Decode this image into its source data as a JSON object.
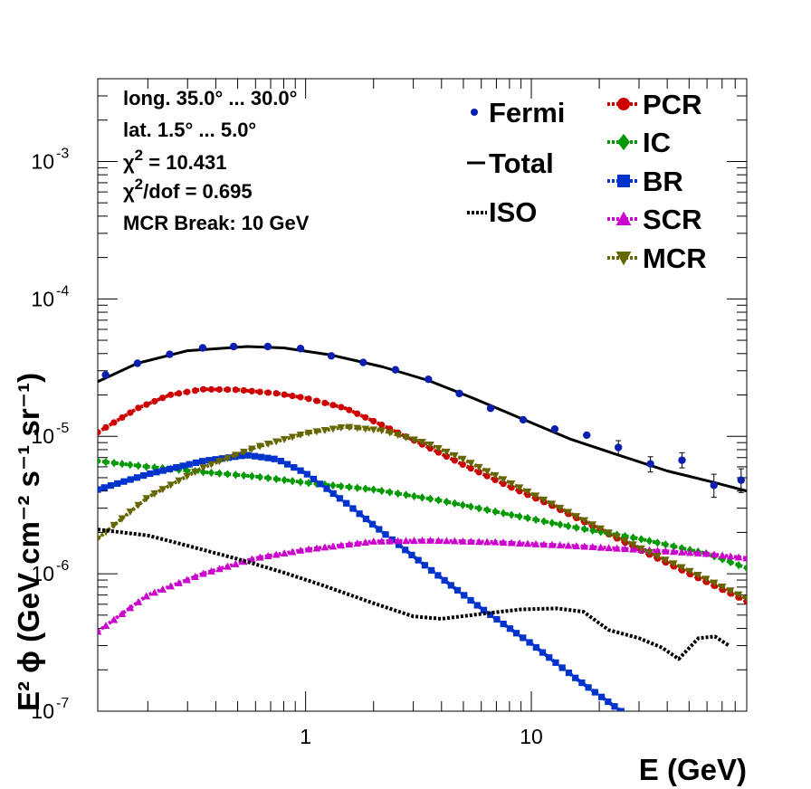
{
  "chart_data": {
    "type": "line",
    "x_scale": "log",
    "y_scale": "log",
    "xlim": [
      0.12,
      90
    ],
    "ylim": [
      1e-07,
      0.004
    ],
    "xlabel": "E (GeV)",
    "ylabel": "E² ϕ (GeV cm⁻² s⁻¹ sr⁻¹)",
    "grid": false,
    "x_ticks": [
      {
        "value": 1,
        "label": "1"
      },
      {
        "value": 10,
        "label": "10"
      }
    ],
    "y_ticks": [
      {
        "value": 1e-07,
        "label": "10",
        "exp": "-7"
      },
      {
        "value": 1e-06,
        "label": "10",
        "exp": "-6"
      },
      {
        "value": 1e-05,
        "label": "10",
        "exp": "-5"
      },
      {
        "value": 0.0001,
        "label": "10",
        "exp": "-4"
      },
      {
        "value": 0.001,
        "label": "10",
        "exp": "-3"
      }
    ],
    "info": [
      {
        "text": "long. 35.0° ... 30.0°"
      },
      {
        "text": "lat. 1.5° ... 5.0°"
      },
      {
        "sym": "χ",
        "sup": "2",
        "rest": " = 10.431"
      },
      {
        "sym": "χ",
        "sup": "2",
        "rest": "/dof = 0.695"
      },
      {
        "text": "MCR Break: 10 GeV"
      }
    ],
    "legend_left": [
      {
        "name": "Fermi"
      },
      {
        "name": "Total"
      },
      {
        "name": "ISO"
      }
    ],
    "legend_right": [
      {
        "name": "PCR"
      },
      {
        "name": "IC"
      },
      {
        "name": "BR"
      },
      {
        "name": "SCR"
      },
      {
        "name": "MCR"
      }
    ],
    "fermi": {
      "color": "#0a1fb0",
      "points": [
        {
          "x": 0.13,
          "y": 2.8e-05
        },
        {
          "x": 0.18,
          "y": 3.4e-05
        },
        {
          "x": 0.25,
          "y": 3.95e-05
        },
        {
          "x": 0.35,
          "y": 4.4e-05
        },
        {
          "x": 0.48,
          "y": 4.5e-05
        },
        {
          "x": 0.68,
          "y": 4.5e-05
        },
        {
          "x": 0.95,
          "y": 4.35e-05
        },
        {
          "x": 1.3,
          "y": 3.85e-05
        },
        {
          "x": 1.8,
          "y": 3.45e-05
        },
        {
          "x": 2.5,
          "y": 3.05e-05
        },
        {
          "x": 3.5,
          "y": 2.6e-05
        },
        {
          "x": 4.8,
          "y": 2.05e-05
        },
        {
          "x": 6.6,
          "y": 1.6e-05
        },
        {
          "x": 9.2,
          "y": 1.32e-05
        },
        {
          "x": 12.7,
          "y": 1.13e-05
        },
        {
          "x": 17.6,
          "y": 1.02e-05
        },
        {
          "x": 24.3,
          "y": 8.3e-06
        },
        {
          "x": 33.7,
          "y": 6.3e-06
        },
        {
          "x": 46.5,
          "y": 6.7e-06
        },
        {
          "x": 64.4,
          "y": 4.4e-06
        },
        {
          "x": 85,
          "y": 4.8e-06
        }
      ],
      "errors": [
        {
          "x": 24.3,
          "lo": 7.3e-06,
          "hi": 9.3e-06
        },
        {
          "x": 33.7,
          "lo": 5.5e-06,
          "hi": 7.1e-06
        },
        {
          "x": 46.5,
          "lo": 5.9e-06,
          "hi": 7.6e-06
        },
        {
          "x": 64.4,
          "lo": 3.6e-06,
          "hi": 5.3e-06
        },
        {
          "x": 85,
          "lo": 3.9e-06,
          "hi": 5.8e-06
        }
      ]
    },
    "series": [
      {
        "name": "Total",
        "color": "#000000",
        "style": "solid",
        "marker": "none",
        "points": [
          [
            0.12,
            2.5e-05
          ],
          [
            0.18,
            3.4e-05
          ],
          [
            0.3,
            4.2e-05
          ],
          [
            0.55,
            4.5e-05
          ],
          [
            0.8,
            4.4e-05
          ],
          [
            1.3,
            3.9e-05
          ],
          [
            2.2,
            3.2e-05
          ],
          [
            3.5,
            2.55e-05
          ],
          [
            5.5,
            1.9e-05
          ],
          [
            9,
            1.35e-05
          ],
          [
            15,
            9.5e-06
          ],
          [
            25,
            7.2e-06
          ],
          [
            40,
            5.6e-06
          ],
          [
            65,
            4.6e-06
          ],
          [
            90,
            4e-06
          ]
        ]
      },
      {
        "name": "PCR",
        "color": "#cc0000",
        "style": "dotted",
        "marker": "circle",
        "points": [
          [
            0.12,
            1.07e-05
          ],
          [
            0.18,
            1.6e-05
          ],
          [
            0.25,
            2e-05
          ],
          [
            0.35,
            2.2e-05
          ],
          [
            0.5,
            2.18e-05
          ],
          [
            0.75,
            2.05e-05
          ],
          [
            1.0,
            1.9e-05
          ],
          [
            1.5,
            1.6e-05
          ],
          [
            2.2,
            1.2e-05
          ],
          [
            3.5,
            8.3e-06
          ],
          [
            5,
            6.2e-06
          ],
          [
            8,
            4.3e-06
          ],
          [
            12,
            3.2e-06
          ],
          [
            20,
            2.1e-06
          ],
          [
            30,
            1.5e-06
          ],
          [
            50,
            1e-06
          ],
          [
            90,
            6.3e-07
          ]
        ]
      },
      {
        "name": "IC",
        "color": "#009900",
        "style": "dotted",
        "marker": "diamond",
        "points": [
          [
            0.12,
            6.6e-06
          ],
          [
            0.2,
            6e-06
          ],
          [
            0.35,
            5.5e-06
          ],
          [
            0.6,
            5.1e-06
          ],
          [
            1,
            4.6e-06
          ],
          [
            2,
            4.1e-06
          ],
          [
            4,
            3.4e-06
          ],
          [
            8,
            2.7e-06
          ],
          [
            15,
            2.2e-06
          ],
          [
            30,
            1.8e-06
          ],
          [
            60,
            1.4e-06
          ],
          [
            90,
            1.1e-06
          ]
        ]
      },
      {
        "name": "BR",
        "color": "#0033cc",
        "style": "dotted",
        "marker": "square",
        "points": [
          [
            0.12,
            4.1e-06
          ],
          [
            0.2,
            5.3e-06
          ],
          [
            0.35,
            6.6e-06
          ],
          [
            0.55,
            7.3e-06
          ],
          [
            0.75,
            6.8e-06
          ],
          [
            1.0,
            5.4e-06
          ],
          [
            1.5,
            3.3e-06
          ],
          [
            2.2,
            2e-06
          ],
          [
            3.5,
            1.1e-06
          ],
          [
            6,
            5.6e-07
          ],
          [
            10,
            3.1e-07
          ],
          [
            16,
            1.7e-07
          ],
          [
            25,
            1e-07
          ]
        ]
      },
      {
        "name": "SCR",
        "color": "#cc00cc",
        "style": "dotted",
        "marker": "triangle-up",
        "points": [
          [
            0.12,
            3.8e-07
          ],
          [
            0.2,
            7e-07
          ],
          [
            0.35,
            1e-06
          ],
          [
            0.6,
            1.3e-06
          ],
          [
            1,
            1.5e-06
          ],
          [
            2,
            1.72e-06
          ],
          [
            3.5,
            1.75e-06
          ],
          [
            7,
            1.7e-06
          ],
          [
            15,
            1.6e-06
          ],
          [
            30,
            1.5e-06
          ],
          [
            60,
            1.4e-06
          ],
          [
            90,
            1.3e-06
          ]
        ]
      },
      {
        "name": "MCR",
        "color": "#666600",
        "style": "dotted",
        "marker": "triangle-down",
        "points": [
          [
            0.12,
            1.8e-06
          ],
          [
            0.2,
            3.6e-06
          ],
          [
            0.35,
            5.9e-06
          ],
          [
            0.6,
            8.3e-06
          ],
          [
            1.0,
            1.05e-05
          ],
          [
            1.5,
            1.17e-05
          ],
          [
            2.2,
            1.1e-05
          ],
          [
            3.5,
            8.8e-06
          ],
          [
            5,
            6.8e-06
          ],
          [
            8,
            4.6e-06
          ],
          [
            12,
            3.3e-06
          ],
          [
            20,
            2.15e-06
          ],
          [
            30,
            1.55e-06
          ],
          [
            50,
            1.05e-06
          ],
          [
            90,
            6.6e-07
          ]
        ]
      },
      {
        "name": "ISO",
        "color": "#000000",
        "style": "dotted",
        "marker": "none",
        "points": [
          [
            0.12,
            2.1e-06
          ],
          [
            0.2,
            1.9e-06
          ],
          [
            0.3,
            1.6e-06
          ],
          [
            0.5,
            1.28e-06
          ],
          [
            0.8,
            1.02e-06
          ],
          [
            1.2,
            8.2e-07
          ],
          [
            2,
            6.1e-07
          ],
          [
            3,
            4.9e-07
          ],
          [
            4,
            4.7e-07
          ],
          [
            6,
            5.1e-07
          ],
          [
            9,
            5.5e-07
          ],
          [
            13,
            5.6e-07
          ],
          [
            17,
            5.3e-07
          ],
          [
            22,
            3.9e-07
          ],
          [
            30,
            3.4e-07
          ],
          [
            38,
            2.9e-07
          ],
          [
            45,
            2.4e-07
          ],
          [
            55,
            3.4e-07
          ],
          [
            65,
            3.5e-07
          ],
          [
            75,
            3e-07
          ]
        ]
      }
    ]
  }
}
